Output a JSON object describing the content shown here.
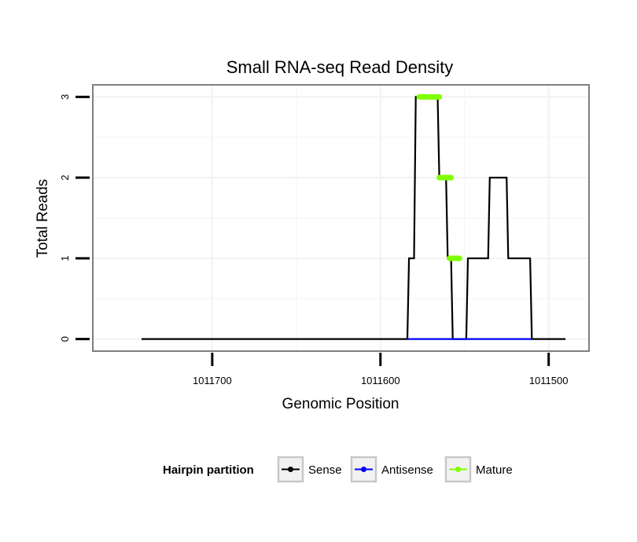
{
  "chart_data": {
    "type": "line",
    "title": "Small RNA-seq Read Density",
    "xlabel": "Genomic Position",
    "ylabel": "Total Reads",
    "xlim": [
      1011771,
      1011476
    ],
    "ylim": [
      -0.15,
      3.15
    ],
    "x_reversed": true,
    "grid": true,
    "xticks": [
      {
        "value": 1011700,
        "label": "1011700"
      },
      {
        "value": 1011600,
        "label": "1011600"
      },
      {
        "value": 1011500,
        "label": "1011500"
      }
    ],
    "yticks": [
      {
        "value": 0,
        "label": "0"
      },
      {
        "value": 1,
        "label": "1"
      },
      {
        "value": 2,
        "label": "2"
      },
      {
        "value": 3,
        "label": "3"
      }
    ],
    "legend": {
      "title": "Hairpin partition",
      "position": "bottom",
      "entries": [
        {
          "name": "Sense",
          "color": "#000000"
        },
        {
          "name": "Antisense",
          "color": "#0000ff"
        },
        {
          "name": "Mature",
          "color": "#80ff00"
        }
      ]
    },
    "series": [
      {
        "name": "Sense",
        "color": "#000000",
        "points": [
          [
            1011742,
            0
          ],
          [
            1011584,
            0
          ],
          [
            1011583,
            1
          ],
          [
            1011580,
            1
          ],
          [
            1011579,
            3
          ],
          [
            1011566,
            3
          ],
          [
            1011565,
            2
          ],
          [
            1011561,
            2
          ],
          [
            1011560,
            1
          ],
          [
            1011558,
            1
          ],
          [
            1011557,
            0
          ],
          [
            1011549,
            0
          ],
          [
            1011548,
            1
          ],
          [
            1011536,
            1
          ],
          [
            1011535,
            2
          ],
          [
            1011525,
            2
          ],
          [
            1011524,
            1
          ],
          [
            1011511,
            1
          ],
          [
            1011510,
            0
          ],
          [
            1011490,
            0
          ]
        ]
      },
      {
        "name": "Antisense",
        "color": "#0000ff",
        "points": [
          [
            1011584,
            0
          ],
          [
            1011510,
            0
          ]
        ]
      },
      {
        "name": "Mature",
        "color": "#80ff00",
        "segments": [
          [
            [
              1011577,
              3
            ],
            [
              1011565,
              3
            ]
          ],
          [
            [
              1011565,
              2
            ],
            [
              1011558,
              2
            ]
          ],
          [
            [
              1011559,
              1
            ],
            [
              1011553,
              1
            ]
          ]
        ]
      }
    ]
  }
}
